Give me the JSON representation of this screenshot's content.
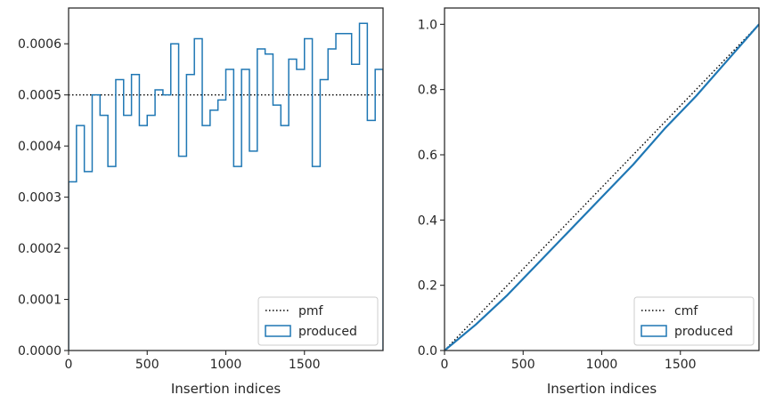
{
  "chart_data": [
    {
      "type": "histogram",
      "xlabel": "Insertion indices",
      "ylabel": "",
      "xlim": [
        0,
        2000
      ],
      "ylim": [
        0,
        0.00067
      ],
      "xticks": [
        0,
        500,
        1000,
        1500
      ],
      "xtick_labels": [
        "0",
        "500",
        "1000",
        "1500"
      ],
      "yticks": [
        0,
        0.0001,
        0.0002,
        0.0003,
        0.0004,
        0.0005,
        0.0006
      ],
      "ytick_labels": [
        "0.0000",
        "0.0001",
        "0.0002",
        "0.0003",
        "0.0004",
        "0.0005",
        "0.0006"
      ],
      "grid": false,
      "legend_position": "lower right",
      "bin_width": 50,
      "series": [
        {
          "name": "pmf",
          "style": "dotted",
          "color": "#000000",
          "x": [
            0,
            2000
          ],
          "y": [
            0.0005,
            0.0005
          ]
        },
        {
          "name": "produced",
          "style": "step",
          "color": "#1f77b4",
          "bin_edges_start": 0,
          "values": [
            0.00033,
            0.00044,
            0.00035,
            0.0005,
            0.00046,
            0.00036,
            0.00053,
            0.00046,
            0.00054,
            0.00044,
            0.00046,
            0.00051,
            0.0005,
            0.0006,
            0.00038,
            0.00054,
            0.00061,
            0.00044,
            0.00047,
            0.00049,
            0.00055,
            0.00036,
            0.00055,
            0.00039,
            0.00059,
            0.00058,
            0.00048,
            0.00044,
            0.00057,
            0.00055,
            0.00061,
            0.00036,
            0.00053,
            0.00059,
            0.00062,
            0.00062,
            0.00056,
            0.00064,
            0.00045,
            0.00055
          ]
        }
      ]
    },
    {
      "type": "line",
      "xlabel": "Insertion indices",
      "ylabel": "",
      "xlim": [
        0,
        2000
      ],
      "ylim": [
        0,
        1.05
      ],
      "xticks": [
        0,
        500,
        1000,
        1500
      ],
      "xtick_labels": [
        "0",
        "500",
        "1000",
        "1500"
      ],
      "yticks": [
        0,
        0.2,
        0.4,
        0.6,
        0.8,
        1.0
      ],
      "ytick_labels": [
        "0.0",
        "0.2",
        "0.4",
        "0.6",
        "0.8",
        "1.0"
      ],
      "grid": false,
      "legend_position": "lower right",
      "series": [
        {
          "name": "cmf",
          "style": "dotted",
          "color": "#000000",
          "x": [
            0,
            2000
          ],
          "y": [
            0,
            1.0
          ]
        },
        {
          "name": "produced",
          "style": "solid",
          "color": "#1f77b4",
          "x": [
            0,
            200,
            400,
            600,
            800,
            1000,
            1200,
            1400,
            1600,
            1800,
            2000
          ],
          "y": [
            0,
            0.08,
            0.17,
            0.27,
            0.37,
            0.47,
            0.57,
            0.68,
            0.78,
            0.89,
            1.0
          ]
        }
      ]
    }
  ]
}
